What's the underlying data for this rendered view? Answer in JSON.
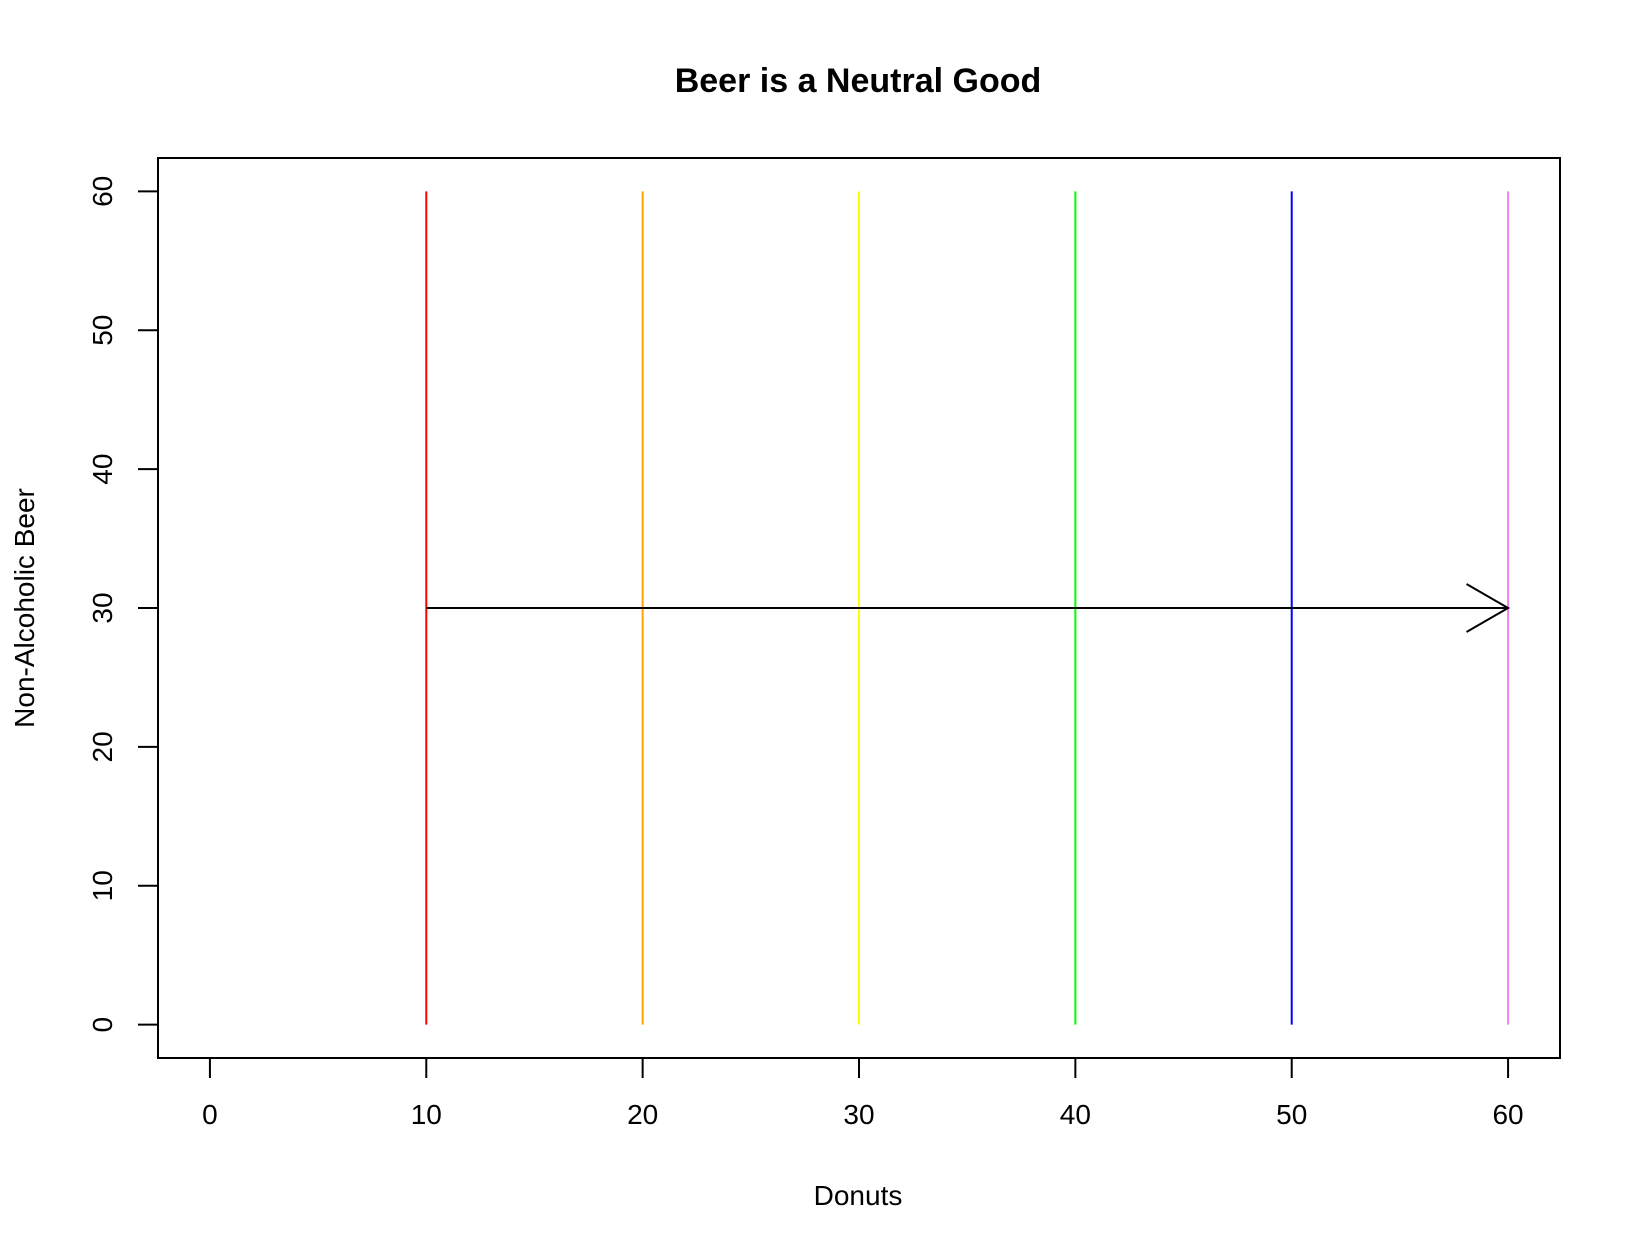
{
  "chart_data": {
    "type": "line",
    "title": "Beer is a Neutral Good",
    "xlabel": "Donuts",
    "ylabel": "Non-Alcoholic Beer",
    "xlim": [
      -2.4,
      62.4
    ],
    "ylim": [
      -2.4,
      62.4
    ],
    "xticks": [
      0,
      10,
      20,
      30,
      40,
      50,
      60
    ],
    "yticks": [
      0,
      10,
      20,
      30,
      40,
      50,
      60
    ],
    "grid": false,
    "legend": "none",
    "vertical_lines": [
      {
        "x": 10,
        "y_from": 0,
        "y_to": 60,
        "color": "#ff0000"
      },
      {
        "x": 20,
        "y_from": 0,
        "y_to": 60,
        "color": "#ffa500"
      },
      {
        "x": 30,
        "y_from": 0,
        "y_to": 60,
        "color": "#ffff00"
      },
      {
        "x": 40,
        "y_from": 0,
        "y_to": 60,
        "color": "#00ff00"
      },
      {
        "x": 50,
        "y_from": 0,
        "y_to": 60,
        "color": "#0000ff"
      },
      {
        "x": 60,
        "y_from": 0,
        "y_to": 60,
        "color": "#ee82ee"
      }
    ],
    "arrow": {
      "x0": 10,
      "y0": 30,
      "x1": 60,
      "y1": 30,
      "color": "#000000"
    }
  }
}
